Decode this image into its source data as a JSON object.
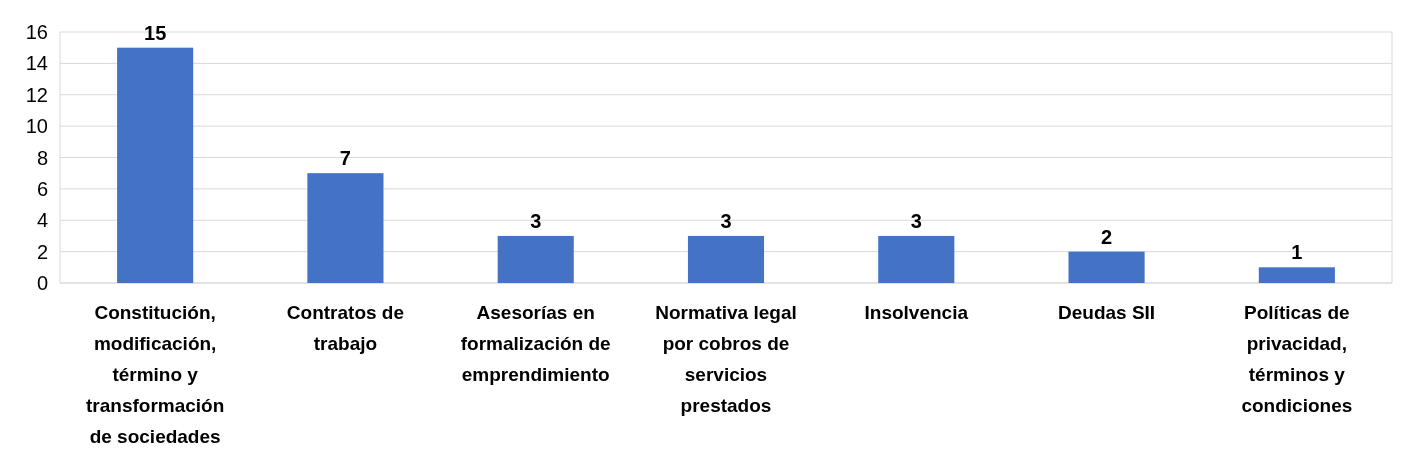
{
  "chart_data": {
    "type": "bar",
    "categories": [
      "Constitución, modificación, término y transformación de sociedades",
      "Contratos de trabajo",
      "Asesorías en formalización de emprendimiento",
      "Normativa legal por cobros de servicios prestados",
      "Insolvencia",
      "Deudas SII",
      "Políticas de privacidad, términos y condiciones"
    ],
    "values": [
      15,
      7,
      3,
      3,
      3,
      2,
      1
    ],
    "color": "#4472c4",
    "ylim": [
      0,
      16
    ],
    "yticks": [
      0,
      2,
      4,
      6,
      8,
      10,
      12,
      14,
      16
    ],
    "grid": "y",
    "data_labels": true
  }
}
